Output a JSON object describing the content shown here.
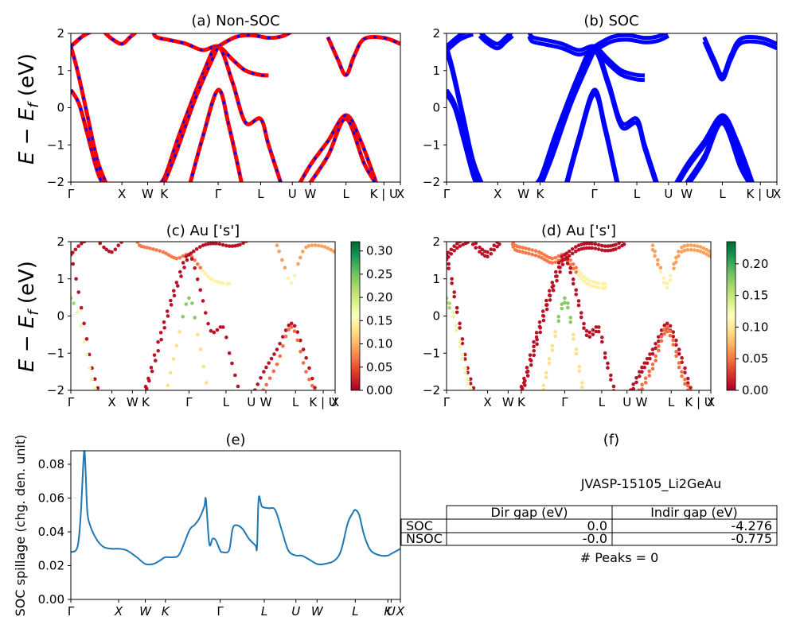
{
  "chart_data": [
    {
      "id": "a",
      "type": "line",
      "title": "(a) Non-SOC",
      "ylabel_html": "E − E_f (eV)",
      "ylim": [
        -2,
        2
      ],
      "yticks": [
        2,
        1,
        0,
        -1,
        -2
      ],
      "kpoints": [
        {
          "label": "Γ",
          "x": 0
        },
        {
          "label": "X",
          "x": 0.155
        },
        {
          "label": "W",
          "x": 0.233
        },
        {
          "label": "K",
          "x": 0.283
        },
        {
          "label": "Γ",
          "x": 0.447
        },
        {
          "label": "L",
          "x": 0.576
        },
        {
          "label": "U",
          "x": 0.672
        },
        {
          "label": "W",
          "x": 0.727
        },
        {
          "label": "L",
          "x": 0.835
        },
        {
          "label": "K | U",
          "x": 0.95
        },
        {
          "label": "X",
          "x": 1.0
        }
      ],
      "legend": [],
      "bands": [
        [
          [
            0,
            1.65
          ],
          [
            0.04,
            1.95
          ],
          [
            0.08,
            2.1
          ]
        ],
        [
          [
            0,
            1.65
          ],
          [
            0.02,
            1.0
          ],
          [
            0.05,
            -0.2
          ],
          [
            0.08,
            -1.4
          ],
          [
            0.11,
            -2.1
          ]
        ],
        [
          [
            0,
            0.48
          ],
          [
            0.025,
            0.1
          ],
          [
            0.05,
            -0.7
          ],
          [
            0.08,
            -1.7
          ],
          [
            0.1,
            -2.1
          ]
        ],
        [
          [
            0.1,
            2.05
          ],
          [
            0.125,
            1.85
          ],
          [
            0.155,
            1.72
          ],
          [
            0.18,
            1.9
          ],
          [
            0.2,
            2.05
          ]
        ],
        [
          [
            0.25,
            2.05
          ],
          [
            0.26,
            1.9
          ],
          [
            0.3,
            1.82
          ],
          [
            0.35,
            1.72
          ],
          [
            0.4,
            1.55
          ],
          [
            0.447,
            1.65
          ],
          [
            0.49,
            1.3
          ],
          [
            0.53,
            1.0
          ],
          [
            0.576,
            0.88
          ],
          [
            0.6,
            0.87
          ]
        ],
        [
          [
            0.447,
            1.65
          ],
          [
            0.5,
            1.9
          ],
          [
            0.55,
            1.95
          ],
          [
            0.6,
            1.88
          ],
          [
            0.64,
            1.92
          ],
          [
            0.672,
            2.05
          ]
        ],
        [
          [
            0.25,
            -2.1
          ],
          [
            0.283,
            -1.9
          ],
          [
            0.33,
            -0.7
          ],
          [
            0.4,
            0.9
          ],
          [
            0.447,
            1.65
          ],
          [
            0.49,
            0.7
          ],
          [
            0.53,
            -0.4
          ],
          [
            0.576,
            -0.3
          ],
          [
            0.6,
            -1.0
          ],
          [
            0.64,
            -2.1
          ]
        ],
        [
          [
            0.28,
            -2.1
          ],
          [
            0.32,
            -1.2
          ],
          [
            0.38,
            0.3
          ],
          [
            0.447,
            1.65
          ]
        ],
        [
          [
            0.36,
            -2.1
          ],
          [
            0.4,
            -0.8
          ],
          [
            0.447,
            0.48
          ],
          [
            0.48,
            -0.5
          ],
          [
            0.52,
            -2.1
          ]
        ],
        [
          [
            0.69,
            -2.1
          ],
          [
            0.73,
            -1.5
          ],
          [
            0.78,
            -0.9
          ],
          [
            0.835,
            -0.2
          ],
          [
            0.88,
            -0.9
          ],
          [
            0.93,
            -2.1
          ]
        ],
        [
          [
            0.72,
            -2.1
          ],
          [
            0.78,
            -1.3
          ],
          [
            0.835,
            -0.3
          ],
          [
            0.89,
            -1.5
          ],
          [
            0.93,
            -2.1
          ]
        ],
        [
          [
            0.78,
            1.9
          ],
          [
            0.81,
            1.3
          ],
          [
            0.835,
            0.88
          ],
          [
            0.86,
            1.4
          ],
          [
            0.89,
            1.85
          ],
          [
            0.95,
            1.88
          ],
          [
            1.0,
            1.72
          ]
        ]
      ]
    },
    {
      "id": "b",
      "type": "line",
      "title": "(b) SOC",
      "ylim": [
        -2,
        2
      ],
      "yticks": [
        2,
        1,
        0,
        -1,
        -2
      ],
      "kpoints": [
        {
          "label": "Γ",
          "x": 0
        },
        {
          "label": "X",
          "x": 0.155
        },
        {
          "label": "W",
          "x": 0.233
        },
        {
          "label": "K",
          "x": 0.283
        },
        {
          "label": "Γ",
          "x": 0.447
        },
        {
          "label": "L",
          "x": 0.576
        },
        {
          "label": "U",
          "x": 0.672
        },
        {
          "label": "W",
          "x": 0.727
        },
        {
          "label": "L",
          "x": 0.835
        },
        {
          "label": "K | U",
          "x": 0.95
        },
        {
          "label": "X",
          "x": 1.0
        }
      ]
    },
    {
      "id": "c",
      "type": "scatter",
      "title": "(c)  Au ['s']",
      "ylabel_html": "E − E_f (eV)",
      "ylim": [
        -2,
        2
      ],
      "yticks": [
        2,
        1,
        0,
        -1,
        -2
      ],
      "colorbar": {
        "min": 0.0,
        "max": 0.32,
        "ticks": [
          "0.30",
          "0.25",
          "0.20",
          "0.15",
          "0.10",
          "0.05",
          "0.00"
        ],
        "tick_values": [
          0.3,
          0.25,
          0.2,
          0.15,
          0.1,
          0.05,
          0.0
        ],
        "colormap": "RdYlGn"
      },
      "kpoints": [
        {
          "label": "Γ",
          "x": 0
        },
        {
          "label": "X",
          "x": 0.155
        },
        {
          "label": "W",
          "x": 0.233
        },
        {
          "label": "K",
          "x": 0.283
        },
        {
          "label": "Γ",
          "x": 0.447
        },
        {
          "label": "L",
          "x": 0.587
        },
        {
          "label": "U",
          "x": 0.683
        },
        {
          "label": "W",
          "x": 0.738
        },
        {
          "label": "L",
          "x": 0.85
        },
        {
          "label": "K | U",
          "x": 0.955
        },
        {
          "label": "X",
          "x": 1.0
        }
      ]
    },
    {
      "id": "d",
      "type": "scatter",
      "title": "(d) Au ['s']",
      "ylim": [
        -2,
        2
      ],
      "yticks": [
        2,
        1,
        0,
        -1,
        -2
      ],
      "colorbar": {
        "min": 0.0,
        "max": 0.235,
        "ticks": [
          "0.20",
          "0.15",
          "0.10",
          "0.05",
          "0.00"
        ],
        "tick_values": [
          0.2,
          0.15,
          0.1,
          0.05,
          0.0
        ],
        "colormap": "RdYlGn"
      },
      "kpoints": [
        {
          "label": "Γ",
          "x": 0
        },
        {
          "label": "X",
          "x": 0.155
        },
        {
          "label": "W",
          "x": 0.233
        },
        {
          "label": "K",
          "x": 0.283
        },
        {
          "label": "Γ",
          "x": 0.447
        },
        {
          "label": "L",
          "x": 0.587
        },
        {
          "label": "U",
          "x": 0.683
        },
        {
          "label": "W",
          "x": 0.738
        },
        {
          "label": "L",
          "x": 0.85
        },
        {
          "label": "K | U",
          "x": 0.955
        },
        {
          "label": "X",
          "x": 1.0
        }
      ]
    },
    {
      "id": "e",
      "type": "line",
      "title": "(e)",
      "ylabel": "SOC spillage (chg. den. unit)",
      "ylim": [
        0,
        0.088
      ],
      "yticks": [
        "0.08",
        "0.06",
        "0.04",
        "0.02",
        "0.00"
      ],
      "ytick_values": [
        0.08,
        0.06,
        0.04,
        0.02,
        0.0
      ],
      "kpoints": [
        {
          "label": "Γ",
          "x": 0
        },
        {
          "label": "X",
          "x": 0.145
        },
        {
          "label": "W",
          "x": 0.226
        },
        {
          "label": "K",
          "x": 0.287
        },
        {
          "label": "Γ",
          "x": 0.453
        },
        {
          "label": "L",
          "x": 0.587
        },
        {
          "label": "U",
          "x": 0.683
        },
        {
          "label": "W",
          "x": 0.747
        },
        {
          "label": "L",
          "x": 0.863
        },
        {
          "label": "K",
          "x": 0.962
        },
        {
          "label": "U",
          "x": 0.972
        },
        {
          "label": "X",
          "x": 1.0
        }
      ],
      "series": [
        {
          "x": [
            0,
            0.02,
            0.03,
            0.04,
            0.045,
            0.05,
            0.06,
            0.08,
            0.1,
            0.125,
            0.145,
            0.17,
            0.2,
            0.226,
            0.25,
            0.27,
            0.287,
            0.31,
            0.33,
            0.36,
            0.375,
            0.39,
            0.405,
            0.41,
            0.42,
            0.43,
            0.44,
            0.453,
            0.46,
            0.48,
            0.49,
            0.5,
            0.52,
            0.54,
            0.56,
            0.565,
            0.57,
            0.58,
            0.6,
            0.62,
            0.64,
            0.66,
            0.683,
            0.7,
            0.72,
            0.747,
            0.77,
            0.8,
            0.82,
            0.84,
            0.855,
            0.863,
            0.875,
            0.89,
            0.91,
            0.94,
            0.962,
            0.972,
            1.0
          ],
          "y": [
            0.028,
            0.031,
            0.05,
            0.087,
            0.075,
            0.052,
            0.043,
            0.035,
            0.031,
            0.03,
            0.03,
            0.029,
            0.025,
            0.021,
            0.021,
            0.023,
            0.025,
            0.025,
            0.027,
            0.041,
            0.044,
            0.048,
            0.055,
            0.059,
            0.033,
            0.036,
            0.035,
            0.029,
            0.028,
            0.029,
            0.041,
            0.044,
            0.042,
            0.036,
            0.032,
            0.031,
            0.06,
            0.055,
            0.054,
            0.053,
            0.041,
            0.029,
            0.026,
            0.026,
            0.024,
            0.021,
            0.021,
            0.023,
            0.029,
            0.045,
            0.051,
            0.053,
            0.05,
            0.038,
            0.029,
            0.026,
            0.026,
            0.027,
            0.03
          ]
        }
      ]
    }
  ],
  "info_panel": {
    "title": "(f)",
    "material": "JVASP-15105_Li2GeAu",
    "headers": [
      "",
      "Dir gap (eV)",
      "Indir gap (eV)"
    ],
    "rows": [
      [
        "SOC",
        "0.0",
        "-4.276"
      ],
      [
        "NSOC",
        "-0.0",
        "-0.775"
      ]
    ],
    "footer": "# Peaks = 0"
  },
  "colors": {
    "soc_band": "#0000ff",
    "nsoc_band": "#ff0000",
    "spillage_line": "#1f77b4"
  }
}
